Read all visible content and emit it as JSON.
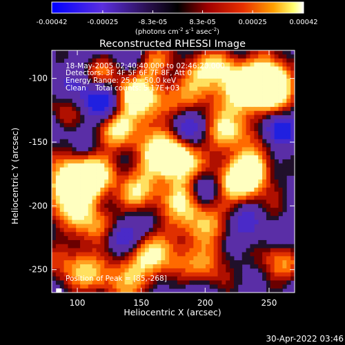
{
  "chart_data": {
    "type": "heatmap",
    "title": "Reconstructed RHESSI Image",
    "xlabel": "Heliocentric X (arcsec)",
    "ylabel": "Heliocentric Y (arcsec)",
    "xlim": [
      80,
      270
    ],
    "ylim": [
      -268,
      -78
    ],
    "xticks": [
      "100",
      "150",
      "200",
      "250"
    ],
    "yticks": [
      "-100",
      "-150",
      "-200",
      "-250"
    ],
    "ytick_values": [
      -100,
      -150,
      -200,
      -250
    ],
    "xtick_values": [
      100,
      150,
      200,
      250
    ],
    "colorbar": {
      "range": [
        -0.00042,
        0.00042
      ],
      "ticks": [
        "-0.00042",
        "-0.00025",
        "-8.3e-05",
        "8.3e-05",
        "0.00025",
        "0.00042"
      ],
      "unit_label": "(photons cm-2 s-1 asec-2)",
      "colors": [
        "#0000ff",
        "#6a34c8",
        "#000000",
        "#a00000",
        "#e83000",
        "#ff9000",
        "#ffff60",
        "#ffffff"
      ]
    },
    "annotations": [
      "18-May-2005 02:40:40.000 to 02:46:20.000",
      "Detectors: 3F 4F 5F 6F 7F 8F, Att 0",
      "Energy Range: 25.0 - 50.0 keV",
      "Clean    Total counts: 5.17E+03",
      "Position of Peak = [85,-268]"
    ],
    "grid": false,
    "legend": "colorbar top"
  },
  "footer": {
    "timestamp": "30-Apr-2022 03:46"
  },
  "colors": {
    "background": "#000000",
    "foreground": "#ffffff",
    "map_base": "#5a2ea6"
  }
}
